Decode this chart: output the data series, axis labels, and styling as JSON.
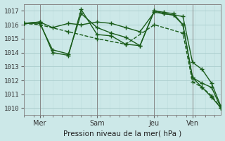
{
  "background_color": "#cce8e8",
  "grid_color_major": "#aacccc",
  "grid_color_minor": "#bbdddd",
  "line_color": "#1a5c1a",
  "xlabel": "Pression niveau de la mer( hPa )",
  "ylim": [
    1009.5,
    1017.5
  ],
  "yticks": [
    1010,
    1011,
    1012,
    1013,
    1014,
    1015,
    1016,
    1017
  ],
  "xlim": [
    0,
    124
  ],
  "xtick_positions": [
    10,
    46,
    82,
    106
  ],
  "xtick_labels": [
    "Mer",
    "Sam",
    "Jeu",
    "Ven"
  ],
  "vlines": [
    10,
    46,
    82,
    106
  ],
  "series": [
    {
      "x": [
        0,
        10,
        18,
        28,
        36,
        46,
        55,
        64,
        73,
        82,
        88,
        94,
        100,
        106,
        112,
        118,
        124
      ],
      "y": [
        1016.1,
        1016.1,
        1014.2,
        1013.9,
        1016.8,
        1015.8,
        1015.4,
        1015.1,
        1014.5,
        1017.0,
        1016.8,
        1016.7,
        1016.0,
        1012.2,
        1011.5,
        1010.8,
        1010.0
      ],
      "marker": "+",
      "markersize": 4,
      "linewidth": 1.0,
      "linestyle": "-"
    },
    {
      "x": [
        0,
        10,
        18,
        28,
        36,
        46,
        55,
        64,
        73,
        82,
        88,
        94,
        100,
        106,
        112,
        118,
        124
      ],
      "y": [
        1016.1,
        1016.2,
        1015.8,
        1016.1,
        1016.0,
        1016.2,
        1016.1,
        1015.8,
        1015.5,
        1016.9,
        1016.8,
        1016.7,
        1016.6,
        1013.3,
        1012.8,
        1011.8,
        1010.1
      ],
      "marker": "+",
      "markersize": 4,
      "linewidth": 1.0,
      "linestyle": "-"
    },
    {
      "x": [
        0,
        10,
        28,
        46,
        64,
        82,
        100,
        106,
        112,
        118,
        124
      ],
      "y": [
        1016.1,
        1016.0,
        1015.5,
        1015.0,
        1014.6,
        1016.0,
        1015.4,
        1011.9,
        1011.5,
        1010.9,
        1010.0
      ],
      "marker": "+",
      "markersize": 4,
      "linewidth": 1.0,
      "linestyle": "--"
    },
    {
      "x": [
        0,
        10,
        18,
        28,
        36,
        46,
        55,
        64,
        73,
        82,
        88,
        94,
        100,
        106,
        112,
        118,
        124
      ],
      "y": [
        1016.1,
        1016.2,
        1014.0,
        1013.8,
        1017.1,
        1015.3,
        1015.2,
        1014.6,
        1014.5,
        1017.0,
        1016.9,
        1016.8,
        1016.0,
        1012.2,
        1011.8,
        1011.5,
        1010.0
      ],
      "marker": "+",
      "markersize": 4,
      "linewidth": 1.0,
      "linestyle": "-"
    }
  ]
}
